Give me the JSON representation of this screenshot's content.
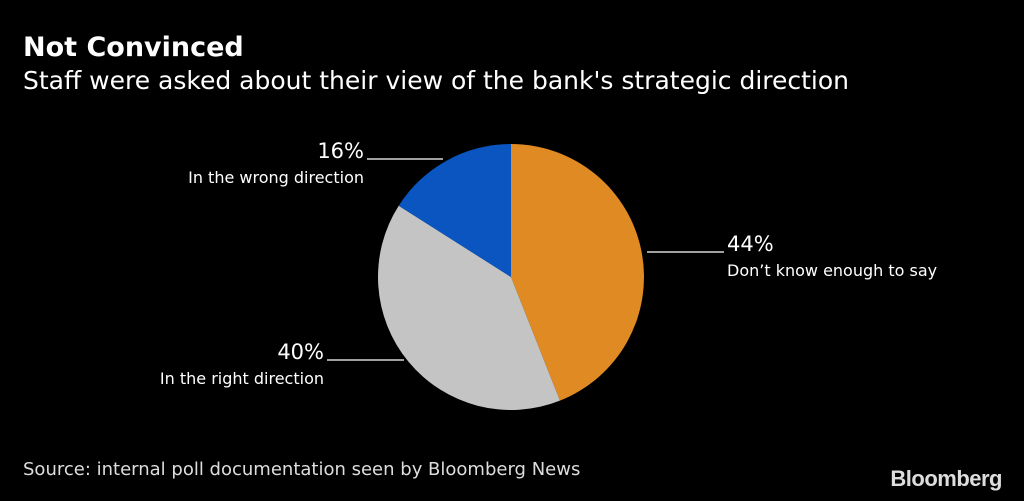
{
  "chart_data": {
    "type": "pie",
    "title": "Not Convinced",
    "subtitle": "Staff were asked about their view of the bank's strategic direction",
    "slices": [
      {
        "label": "Don’t know enough to say",
        "value": 44,
        "value_label": "44%",
        "color": "#e08a24"
      },
      {
        "label": "In the right direction",
        "value": 40,
        "value_label": "40%",
        "color": "#c4c4c4"
      },
      {
        "label": "In the wrong direction",
        "value": 16,
        "value_label": "16%",
        "color": "#0a55c0"
      }
    ],
    "start": "top",
    "direction": "clockwise",
    "source": "Source: internal poll documentation seen by Bloomberg News"
  },
  "branding": {
    "logo": "Bloomberg"
  }
}
